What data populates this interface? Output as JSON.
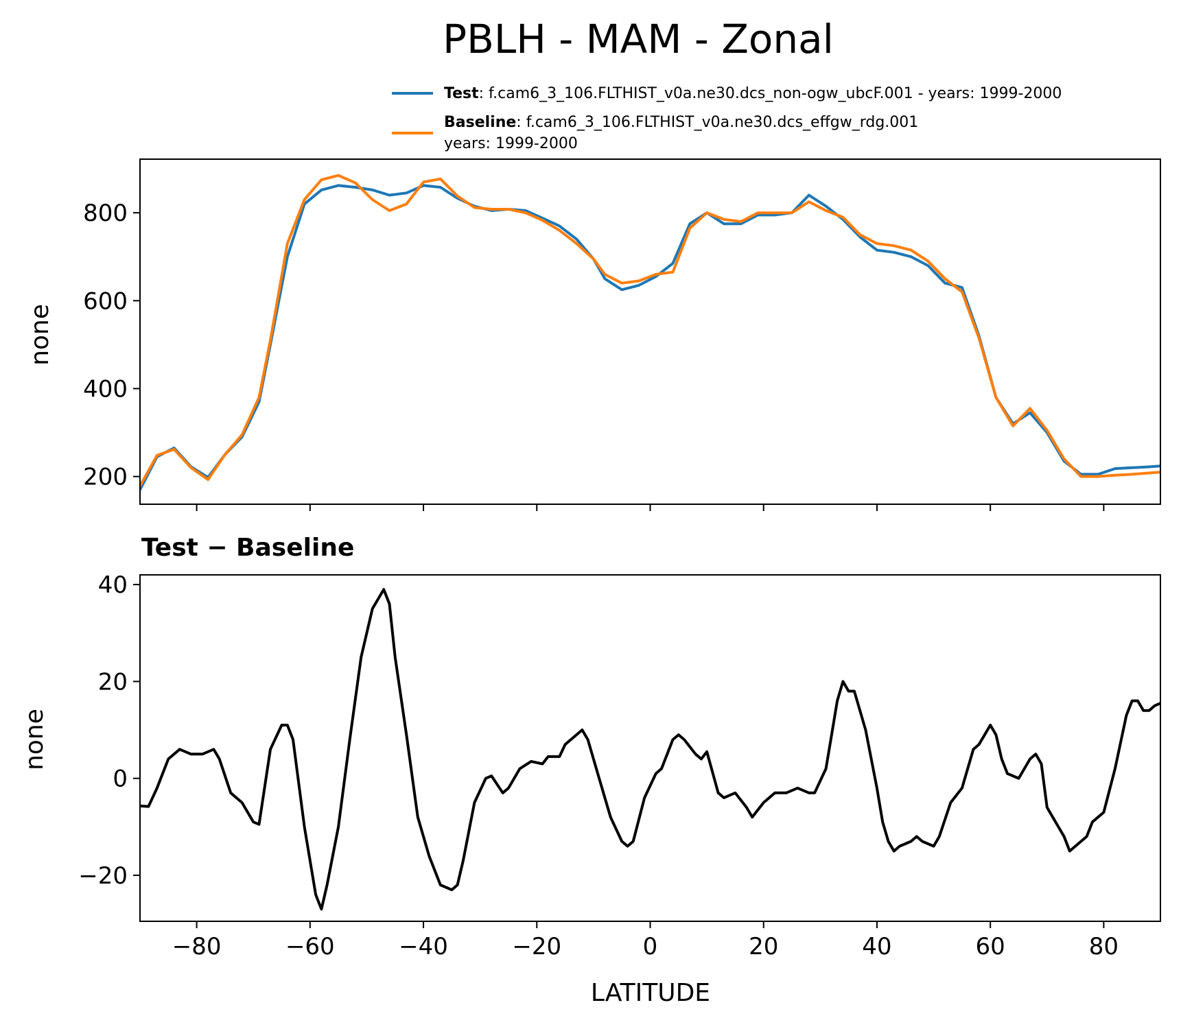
{
  "title": "PBLH - MAM - Zonal",
  "legend": {
    "test_label": "Test",
    "test_text": ": f.cam6_3_106.FLTHIST_v0a.ne30.dcs_non-ogw_ubcF.001 - years: 1999-2000",
    "baseline_label": "Baseline",
    "baseline_text": ": f.cam6_3_106.FLTHIST_v0a.ne30.dcs_effgw_rdg.001",
    "baseline_years": "years: 1999-2000"
  },
  "colors": {
    "test": "#1f77b4",
    "baseline": "#ff7f0e",
    "diff": "#000000"
  },
  "chart_data": [
    {
      "type": "line",
      "title": "",
      "xlabel": "",
      "ylabel": "none",
      "xlim": [
        -90,
        90
      ],
      "ylim": [
        137,
        922
      ],
      "yticks": [
        200,
        400,
        600,
        800
      ],
      "xticks": [
        -80,
        -60,
        -40,
        -20,
        0,
        20,
        40,
        60,
        80
      ],
      "x": [
        -90,
        -87,
        -84,
        -81,
        -78,
        -75,
        -72,
        -69,
        -67,
        -64,
        -61,
        -58,
        -55,
        -52,
        -49,
        -46,
        -43,
        -40,
        -37,
        -34,
        -31,
        -28,
        -25,
        -22,
        -19,
        -16,
        -13,
        -10,
        -8,
        -5,
        -2,
        1,
        4,
        7,
        10,
        13,
        16,
        19,
        22,
        25,
        28,
        31,
        34,
        37,
        40,
        43,
        46,
        49,
        52,
        55,
        58,
        61,
        64,
        67,
        70,
        73,
        76,
        79,
        82,
        85,
        88,
        90
      ],
      "series": [
        {
          "name": "Test",
          "values": [
            170,
            245,
            265,
            222,
            198,
            250,
            290,
            370,
            500,
            700,
            820,
            852,
            862,
            858,
            852,
            840,
            845,
            862,
            858,
            833,
            815,
            805,
            808,
            805,
            788,
            770,
            740,
            695,
            650,
            625,
            635,
            655,
            685,
            775,
            800,
            775,
            775,
            795,
            795,
            800,
            840,
            815,
            785,
            745,
            715,
            710,
            700,
            680,
            640,
            630,
            520,
            380,
            320,
            345,
            300,
            235,
            205,
            205,
            218,
            220,
            222,
            224
          ]
        },
        {
          "name": "Baseline",
          "values": [
            178,
            248,
            262,
            220,
            193,
            250,
            295,
            380,
            510,
            730,
            830,
            875,
            885,
            868,
            830,
            805,
            820,
            870,
            877,
            838,
            812,
            808,
            808,
            800,
            783,
            760,
            730,
            695,
            660,
            640,
            645,
            660,
            665,
            765,
            800,
            785,
            780,
            800,
            800,
            800,
            825,
            805,
            790,
            750,
            730,
            725,
            715,
            690,
            650,
            620,
            515,
            380,
            315,
            355,
            305,
            240,
            200,
            200,
            203,
            205,
            208,
            210
          ]
        }
      ]
    },
    {
      "type": "line",
      "title": "Test − Baseline",
      "xlabel": "LATITUDE",
      "ylabel": "none",
      "xlim": [
        -90,
        90
      ],
      "ylim": [
        -29.5,
        42
      ],
      "yticks": [
        -20,
        0,
        20,
        40
      ],
      "xticks": [
        -80,
        -60,
        -40,
        -20,
        0,
        20,
        40,
        60,
        80
      ],
      "xtick_labels": [
        "−80",
        "−60",
        "−40",
        "−20",
        "0",
        "20",
        "40",
        "60",
        "80"
      ],
      "ytick_labels": [
        "−20",
        "0",
        "20",
        "40"
      ],
      "x": [
        -90,
        -88.5,
        -87,
        -85,
        -83,
        -81,
        -79,
        -77,
        -76,
        -74,
        -72,
        -70,
        -69,
        -67,
        -65,
        -64,
        -63,
        -61,
        -59,
        -58,
        -57,
        -55,
        -53,
        -51,
        -49,
        -47,
        -46,
        -45,
        -43,
        -41,
        -39,
        -37,
        -35,
        -34,
        -33,
        -31,
        -29,
        -28,
        -26,
        -25,
        -23,
        -21,
        -19,
        -18,
        -16,
        -15,
        -13,
        -12,
        -11,
        -9,
        -7,
        -5,
        -4,
        -3,
        -1,
        1,
        2,
        4,
        5,
        6,
        8,
        9,
        10,
        12,
        13,
        15,
        17,
        18,
        20,
        22,
        24,
        26,
        28,
        29,
        31,
        32,
        33,
        34,
        35,
        36,
        38,
        40,
        41,
        42,
        43,
        44,
        46,
        47,
        48,
        50,
        51,
        53,
        55,
        57,
        58,
        60,
        61,
        62,
        63,
        65,
        67,
        68,
        69,
        70,
        72,
        73,
        74,
        75,
        77,
        78,
        80,
        82,
        84,
        85,
        86,
        87,
        88,
        89,
        90
      ],
      "values": [
        -5.7,
        -5.8,
        -2,
        4,
        6,
        5,
        5,
        6,
        4,
        -3,
        -5,
        -9,
        -9.5,
        6,
        11,
        11,
        8,
        -10,
        -24,
        -27,
        -22,
        -10,
        8,
        25,
        35,
        39,
        36,
        25,
        9,
        -8,
        -16,
        -22,
        -23,
        -22,
        -17,
        -5,
        0,
        0.5,
        -3,
        -2,
        2,
        3.5,
        3,
        4.5,
        4.5,
        7,
        9,
        10,
        8,
        0,
        -8,
        -13,
        -14,
        -13,
        -4,
        1,
        2,
        8,
        9,
        8,
        5,
        4,
        5.5,
        -3,
        -4,
        -3,
        -6,
        -8,
        -5,
        -3,
        -3,
        -2,
        -3,
        -3,
        2,
        9,
        16,
        20,
        18,
        18,
        10,
        -2,
        -9,
        -13,
        -15,
        -14,
        -13,
        -12,
        -13,
        -14,
        -12,
        -5,
        -2,
        6,
        7,
        11,
        9,
        4,
        1,
        0,
        4,
        5,
        3,
        -6,
        -10,
        -12,
        -15,
        -14,
        -12,
        -9,
        -7,
        2,
        13,
        16,
        16,
        14,
        14,
        15,
        15.5
      ]
    }
  ]
}
